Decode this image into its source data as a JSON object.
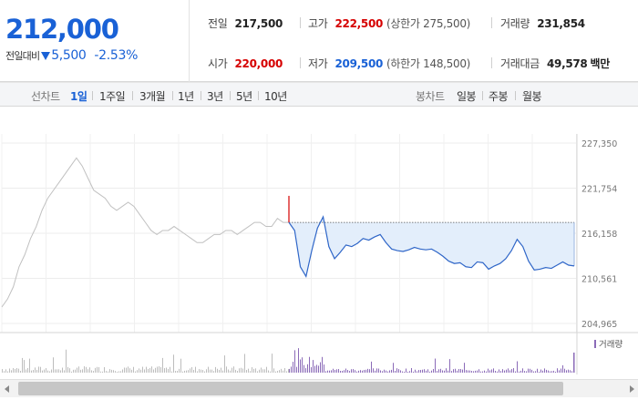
{
  "quote": {
    "price": "212,000",
    "change_label": "전일대비",
    "change_value": "5,500",
    "change_percent": "-2.53%",
    "direction": "down",
    "stats": {
      "prev_close": {
        "label": "전일",
        "value": "217,500"
      },
      "high": {
        "label": "고가",
        "value": "222,500",
        "limit_text": "(상한가 275,500)"
      },
      "volume": {
        "label": "거래량",
        "value": "231,854"
      },
      "open": {
        "label": "시가",
        "value": "220,000"
      },
      "low": {
        "label": "저가",
        "value": "209,500",
        "limit_text": "(하한가 148,500)"
      },
      "amount": {
        "label": "거래대금",
        "value": "49,578",
        "unit": "백만"
      }
    }
  },
  "toolbar": {
    "line_chart_label": "선차트",
    "periods": [
      "1일",
      "1주일",
      "3개월",
      "1년",
      "3년",
      "5년",
      "10년"
    ],
    "selected_period": "1일",
    "candle_chart_label": "봉차트",
    "candle_periods": [
      "일봉",
      "주봉",
      "월봉"
    ]
  },
  "colors": {
    "accent_blue": "#1961d6",
    "up_red": "#d60000",
    "prev_day_line": "#c0c0c0",
    "today_line": "#2f66c8",
    "today_fill": "#e3eefb",
    "volume_prev": "#bdbdbd",
    "volume_today": "#8b6bb8"
  },
  "chart_data": {
    "type": "line",
    "ylim": [
      204965,
      227350
    ],
    "yticks": [
      "227,350",
      "221,754",
      "216,158",
      "210,561",
      "204,965"
    ],
    "yticks_values": [
      227350,
      221754,
      216158,
      210561,
      204965
    ],
    "reference_price": 217500,
    "volume_legend": "거래량",
    "series": [
      {
        "key": "prev_day",
        "values": [
          207000,
          208000,
          209500,
          212000,
          213500,
          215500,
          217000,
          219000,
          220500,
          221500,
          222500,
          223500,
          224500,
          225500,
          224500,
          223000,
          221500,
          221000,
          220500,
          219500,
          219000,
          219500,
          220000,
          219500,
          218500,
          217500,
          216500,
          216000,
          216500,
          216500,
          217000,
          216500,
          216000,
          215500,
          215000,
          215000,
          215500,
          216000,
          216000,
          216500,
          216500,
          216000,
          216500,
          217000,
          217500,
          217500,
          217000,
          217000,
          218000,
          217500,
          217500
        ]
      },
      {
        "key": "today",
        "values": [
          217500,
          216500,
          212000,
          210800,
          214000,
          216800,
          218200,
          214500,
          213000,
          213800,
          214700,
          214500,
          214900,
          215500,
          215300,
          215700,
          216000,
          215000,
          214200,
          214000,
          213900,
          214100,
          214400,
          214200,
          214100,
          214200,
          213800,
          213300,
          212700,
          212400,
          212500,
          212000,
          211900,
          212600,
          212500,
          211700,
          212100,
          212400,
          213000,
          214000,
          215400,
          214500,
          212700,
          211600,
          211700,
          211900,
          211800,
          212200,
          212600,
          212200,
          212100
        ]
      }
    ]
  }
}
